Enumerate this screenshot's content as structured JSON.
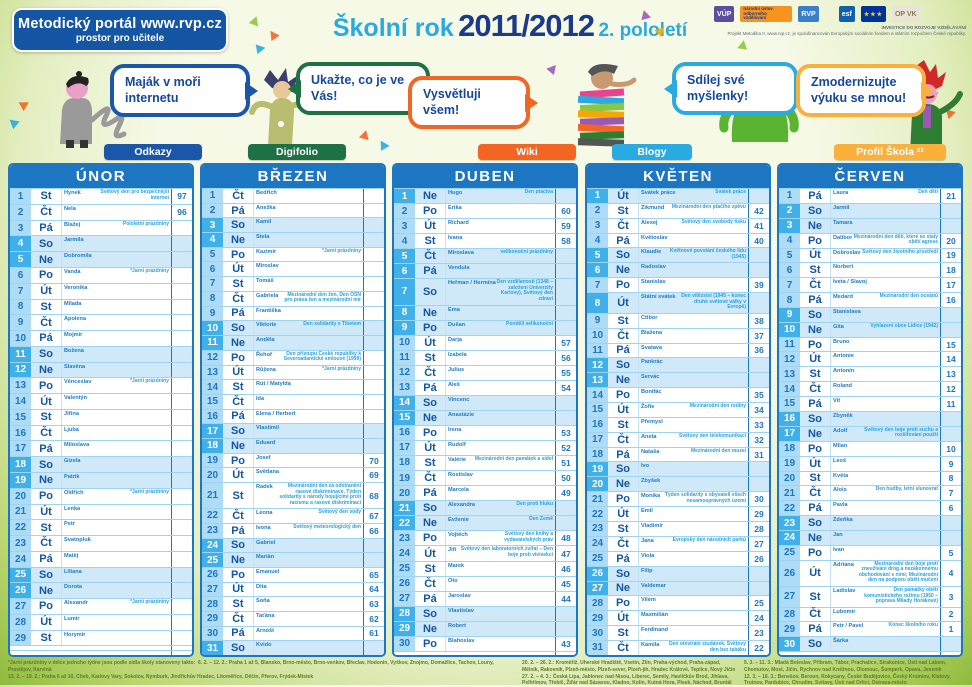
{
  "header": {
    "badge_line1": "Metodický portál www.rvp.cz",
    "badge_line2": "prostor pro učitele",
    "title_prefix": "Školní rok",
    "title_year": "2011/2012",
    "title_suffix": "2. pololetí",
    "logos": {
      "vup": "VÚP",
      "nuv": "národní ústav odborného vzdělávání",
      "rvp": "RVP",
      "esf": "esf",
      "eu": "★★★",
      "opvk": "OP VK"
    },
    "logo_caption1": "INVESTICE DO ROZVOJE VZDĚLÁVÁNÍ",
    "logo_caption2": "Projekt Metodika II, www.rvp.cz, je spolufinancován Evropským sociálním fondem a státním rozpočtem České republiky."
  },
  "mascots": [
    {
      "bubble": "Maják v moři internetu",
      "tab": "Odkazy",
      "color": "#1b57a8"
    },
    {
      "bubble": "Ukažte, co je ve Vás!",
      "tab": "Digifolio",
      "color": "#1e7145"
    },
    {
      "bubble": "Vysvětluji všem!",
      "tab": "Wiki",
      "color": "#f26522"
    },
    {
      "bubble": "Sdílej své myšlenky!",
      "tab": "Blogy",
      "color": "#29abe2"
    },
    {
      "bubble": "Zmodernizujte výuku se mnou!",
      "tab": "Profil Škola ²¹",
      "color": "#fbb03b"
    }
  ],
  "months": [
    {
      "name": "ÚNOR",
      "days": [
        {
          "d": 1,
          "dw": "St",
          "n": "Hynek",
          "note": "Světový den pro bezpečnější internet",
          "c": "97"
        },
        {
          "d": 2,
          "dw": "Čt",
          "n": "Nela",
          "c": "96"
        },
        {
          "d": 3,
          "dw": "Pá",
          "n": "Blažej",
          "note": "Pololetní prázdniny"
        },
        {
          "d": 4,
          "dw": "So",
          "n": "Jarmila"
        },
        {
          "d": 5,
          "dw": "Ne",
          "n": "Dobromila"
        },
        {
          "d": 6,
          "dw": "Po",
          "n": "Vanda",
          "note": "*Jarní prázdniny"
        },
        {
          "d": 7,
          "dw": "Út",
          "n": "Veronika"
        },
        {
          "d": 8,
          "dw": "St",
          "n": "Milada"
        },
        {
          "d": 9,
          "dw": "Čt",
          "n": "Apolena"
        },
        {
          "d": 10,
          "dw": "Pá",
          "n": "Mojmír"
        },
        {
          "d": 11,
          "dw": "So",
          "n": "Božena"
        },
        {
          "d": 12,
          "dw": "Ne",
          "n": "Slavěna"
        },
        {
          "d": 13,
          "dw": "Po",
          "n": "Věnceslav",
          "note": "*Jarní prázdniny"
        },
        {
          "d": 14,
          "dw": "Út",
          "n": "Valentýn"
        },
        {
          "d": 15,
          "dw": "St",
          "n": "Jiřina"
        },
        {
          "d": 16,
          "dw": "Čt",
          "n": "Ljuba"
        },
        {
          "d": 17,
          "dw": "Pá",
          "n": "Miloslava"
        },
        {
          "d": 18,
          "dw": "So",
          "n": "Gizela"
        },
        {
          "d": 19,
          "dw": "Ne",
          "n": "Patrik"
        },
        {
          "d": 20,
          "dw": "Po",
          "n": "Oldřich",
          "note": "*Jarní prázdniny"
        },
        {
          "d": 21,
          "dw": "Út",
          "n": "Lenka"
        },
        {
          "d": 22,
          "dw": "St",
          "n": "Petr"
        },
        {
          "d": 23,
          "dw": "Čt",
          "n": "Svatopluk"
        },
        {
          "d": 24,
          "dw": "Pá",
          "n": "Matěj"
        },
        {
          "d": 25,
          "dw": "So",
          "n": "Liliana"
        },
        {
          "d": 26,
          "dw": "Ne",
          "n": "Dorota"
        },
        {
          "d": 27,
          "dw": "Po",
          "n": "Alexandr",
          "note": "*Jarní prázdniny"
        },
        {
          "d": 28,
          "dw": "Út",
          "n": "Lumír"
        },
        {
          "d": 29,
          "dw": "St",
          "n": "Horymír"
        }
      ]
    },
    {
      "name": "BŘEZEN",
      "days": [
        {
          "d": 1,
          "dw": "Čt",
          "n": "Bedřich"
        },
        {
          "d": 2,
          "dw": "Pá",
          "n": "Anežka"
        },
        {
          "d": 3,
          "dw": "So",
          "n": "Kamil"
        },
        {
          "d": 4,
          "dw": "Ne",
          "n": "Stela"
        },
        {
          "d": 5,
          "dw": "Po",
          "n": "Kazimír",
          "note": "*Jarní prázdniny"
        },
        {
          "d": 6,
          "dw": "Út",
          "n": "Miroslav"
        },
        {
          "d": 7,
          "dw": "St",
          "n": "Tomáš"
        },
        {
          "d": 8,
          "dw": "Čt",
          "n": "Gabriela",
          "note": "Mezinárodní den žen, Den OSN pro práva žen a mezinárodní mír"
        },
        {
          "d": 9,
          "dw": "Pá",
          "n": "Františka"
        },
        {
          "d": 10,
          "dw": "So",
          "n": "Viktorie",
          "note": "Den solidarity s Tibetem"
        },
        {
          "d": 11,
          "dw": "Ne",
          "n": "Anděla"
        },
        {
          "d": 12,
          "dw": "Po",
          "n": "Řehoř",
          "note": "Den přístupu České republiky k Severoatlantické smlouvě (1999)"
        },
        {
          "d": 13,
          "dw": "Út",
          "n": "Růžena",
          "note": "*Jarní prázdniny"
        },
        {
          "d": 14,
          "dw": "St",
          "n": "Rút / Matylda"
        },
        {
          "d": 15,
          "dw": "Čt",
          "n": "Ida"
        },
        {
          "d": 16,
          "dw": "Pá",
          "n": "Elena / Herbert"
        },
        {
          "d": 17,
          "dw": "So",
          "n": "Vlastimil"
        },
        {
          "d": 18,
          "dw": "Ne",
          "n": "Eduard"
        },
        {
          "d": 19,
          "dw": "Po",
          "n": "Josef",
          "c": "70"
        },
        {
          "d": 20,
          "dw": "Út",
          "n": "Světlana",
          "c": "69"
        },
        {
          "d": 21,
          "dw": "St",
          "n": "Radek",
          "note": "Mezinárodní den za odstranění rasové diskriminace, Týden solidarity s národy bojujícími proti rasismu a rasové diskriminaci",
          "c": "68"
        },
        {
          "d": 22,
          "dw": "Čt",
          "n": "Leona",
          "note": "Světový den vody",
          "c": "67"
        },
        {
          "d": 23,
          "dw": "Pá",
          "n": "Ivona",
          "note": "Světový meteorologický den",
          "c": "66"
        },
        {
          "d": 24,
          "dw": "So",
          "n": "Gabriel"
        },
        {
          "d": 25,
          "dw": "Ne",
          "n": "Marián"
        },
        {
          "d": 26,
          "dw": "Po",
          "n": "Emanuel",
          "c": "65"
        },
        {
          "d": 27,
          "dw": "Út",
          "n": "Dita",
          "c": "64"
        },
        {
          "d": 28,
          "dw": "St",
          "n": "Soňa",
          "c": "63"
        },
        {
          "d": 29,
          "dw": "Čt",
          "n": "Taťána",
          "c": "62"
        },
        {
          "d": 30,
          "dw": "Pá",
          "n": "Arnošt",
          "c": "61"
        },
        {
          "d": 31,
          "dw": "So",
          "n": "Kvido"
        }
      ]
    },
    {
      "name": "DUBEN",
      "days": [
        {
          "d": 1,
          "dw": "Ne",
          "n": "Hugo",
          "note": "Den ptactva"
        },
        {
          "d": 2,
          "dw": "Po",
          "n": "Erika",
          "c": "60"
        },
        {
          "d": 3,
          "dw": "Út",
          "n": "Richard",
          "c": "59"
        },
        {
          "d": 4,
          "dw": "St",
          "n": "Ivana",
          "c": "58"
        },
        {
          "d": 5,
          "dw": "Čt",
          "n": "Miroslava",
          "note": "velikonoční prázdniny",
          "h": true
        },
        {
          "d": 6,
          "dw": "Pá",
          "n": "Vendula",
          "h": true
        },
        {
          "d": 7,
          "dw": "So",
          "n": "Heřman / Hermína",
          "note": "Den vzdělanosti (1348 – založení Univerzity Karlovy), Světový den zdraví"
        },
        {
          "d": 8,
          "dw": "Ne",
          "n": "Ema"
        },
        {
          "d": 9,
          "dw": "Po",
          "n": "Dušan",
          "note": "Pondělí velikonoční",
          "h": true
        },
        {
          "d": 10,
          "dw": "Út",
          "n": "Darja",
          "c": "57"
        },
        {
          "d": 11,
          "dw": "St",
          "n": "Izabela",
          "c": "56"
        },
        {
          "d": 12,
          "dw": "Čt",
          "n": "Julius",
          "c": "55"
        },
        {
          "d": 13,
          "dw": "Pá",
          "n": "Aleš",
          "c": "54"
        },
        {
          "d": 14,
          "dw": "So",
          "n": "Vincenc"
        },
        {
          "d": 15,
          "dw": "Ne",
          "n": "Anastázie"
        },
        {
          "d": 16,
          "dw": "Po",
          "n": "Irena",
          "c": "53"
        },
        {
          "d": 17,
          "dw": "Út",
          "n": "Rudolf",
          "c": "52"
        },
        {
          "d": 18,
          "dw": "St",
          "n": "Valérie",
          "note": "Mezinárodní den památek a sídel",
          "c": "51"
        },
        {
          "d": 19,
          "dw": "Čt",
          "n": "Rostislav",
          "c": "50"
        },
        {
          "d": 20,
          "dw": "Pá",
          "n": "Marcela",
          "c": "49"
        },
        {
          "d": 21,
          "dw": "So",
          "n": "Alexandra",
          "note": "Den proti hluku"
        },
        {
          "d": 22,
          "dw": "Ne",
          "n": "Evženie",
          "note": "Den Země"
        },
        {
          "d": 23,
          "dw": "Po",
          "n": "Vojtěch",
          "note": "Světový den knihy a vydavatelských práv",
          "c": "48"
        },
        {
          "d": 24,
          "dw": "Út",
          "n": "Jiří",
          "note": "Světový den laboratorních zvířat – Den boje proti vivisekci",
          "c": "47"
        },
        {
          "d": 25,
          "dw": "St",
          "n": "Marek",
          "c": "46"
        },
        {
          "d": 26,
          "dw": "Čt",
          "n": "Oto",
          "c": "45"
        },
        {
          "d": 27,
          "dw": "Pá",
          "n": "Jaroslav",
          "c": "44"
        },
        {
          "d": 28,
          "dw": "So",
          "n": "Vlastislav"
        },
        {
          "d": 29,
          "dw": "Ne",
          "n": "Robert"
        },
        {
          "d": 30,
          "dw": "Po",
          "n": "Blahoslav",
          "c": "43"
        }
      ]
    },
    {
      "name": "KVĚTEN",
      "days": [
        {
          "d": 1,
          "dw": "Út",
          "n": "Svátek práce",
          "note": "Svátek práce",
          "h": true
        },
        {
          "d": 2,
          "dw": "St",
          "n": "Zikmund",
          "note": "Mezinárodní den ptačího zpěvu",
          "c": "42"
        },
        {
          "d": 3,
          "dw": "Čt",
          "n": "Alexej",
          "note": "Světový den svobody tisku",
          "c": "41"
        },
        {
          "d": 4,
          "dw": "Pá",
          "n": "Květoslav",
          "c": "40"
        },
        {
          "d": 5,
          "dw": "So",
          "n": "Klaudie",
          "note": "Květnové povstání českého lidu (1945)"
        },
        {
          "d": 6,
          "dw": "Ne",
          "n": "Radoslav"
        },
        {
          "d": 7,
          "dw": "Po",
          "n": "Stanislav",
          "c": "39"
        },
        {
          "d": 8,
          "dw": "Út",
          "n": "Státní svátek",
          "note": "Den vítězství (1945 – konec druhé světové války v Evropě)",
          "h": true
        },
        {
          "d": 9,
          "dw": "St",
          "n": "Ctibor",
          "c": "38"
        },
        {
          "d": 10,
          "dw": "Čt",
          "n": "Blažena",
          "c": "37"
        },
        {
          "d": 11,
          "dw": "Pá",
          "n": "Svatava",
          "c": "36"
        },
        {
          "d": 12,
          "dw": "So",
          "n": "Pankrác"
        },
        {
          "d": 13,
          "dw": "Ne",
          "n": "Servác"
        },
        {
          "d": 14,
          "dw": "Po",
          "n": "Bonifác",
          "c": "35"
        },
        {
          "d": 15,
          "dw": "Út",
          "n": "Žofie",
          "note": "Mezinárodní den rodiny",
          "c": "34"
        },
        {
          "d": 16,
          "dw": "St",
          "n": "Přemysl",
          "c": "33"
        },
        {
          "d": 17,
          "dw": "Čt",
          "n": "Aneta",
          "note": "Světový den telekomunikací",
          "c": "32"
        },
        {
          "d": 18,
          "dw": "Pá",
          "n": "Nataša",
          "note": "Mezinárodní den muzeí",
          "c": "31"
        },
        {
          "d": 19,
          "dw": "So",
          "n": "Ivo"
        },
        {
          "d": 20,
          "dw": "Ne",
          "n": "Zbyšek"
        },
        {
          "d": 21,
          "dw": "Po",
          "n": "Monika",
          "note": "Týden solidarity s obyvateli všech nesamosprávných území",
          "c": "30"
        },
        {
          "d": 22,
          "dw": "Út",
          "n": "Emil",
          "c": "29"
        },
        {
          "d": 23,
          "dw": "St",
          "n": "Vladimír",
          "c": "28"
        },
        {
          "d": 24,
          "dw": "Čt",
          "n": "Jana",
          "note": "Evropský den národních parků",
          "c": "27"
        },
        {
          "d": 25,
          "dw": "Pá",
          "n": "Viola",
          "c": "26"
        },
        {
          "d": 26,
          "dw": "So",
          "n": "Filip"
        },
        {
          "d": 27,
          "dw": "Ne",
          "n": "Valdemar"
        },
        {
          "d": 28,
          "dw": "Po",
          "n": "Vilém",
          "c": "25"
        },
        {
          "d": 29,
          "dw": "Út",
          "n": "Maxmilián",
          "c": "24"
        },
        {
          "d": 30,
          "dw": "St",
          "n": "Ferdinand",
          "c": "23"
        },
        {
          "d": 31,
          "dw": "Čt",
          "n": "Kamila",
          "note": "Den otevírání studánek, Světový den bez tabáku",
          "c": "22"
        }
      ]
    },
    {
      "name": "ČERVEN",
      "days": [
        {
          "d": 1,
          "dw": "Pá",
          "n": "Laura",
          "note": "Den dětí",
          "c": "21"
        },
        {
          "d": 2,
          "dw": "So",
          "n": "Jarmil"
        },
        {
          "d": 3,
          "dw": "Ne",
          "n": "Tamara"
        },
        {
          "d": 4,
          "dw": "Po",
          "n": "Dalibor",
          "note": "Mezinárodní den dětí, které se staly obětí agrese",
          "c": "20"
        },
        {
          "d": 5,
          "dw": "Út",
          "n": "Dobroslav",
          "note": "Světový den životního prostředí",
          "c": "19"
        },
        {
          "d": 6,
          "dw": "St",
          "n": "Norbert",
          "c": "18"
        },
        {
          "d": 7,
          "dw": "Čt",
          "n": "Iveta / Slavoj",
          "c": "17"
        },
        {
          "d": 8,
          "dw": "Pá",
          "n": "Medard",
          "note": "Mezinárodní den oceánů",
          "c": "16"
        },
        {
          "d": 9,
          "dw": "So",
          "n": "Stanislava"
        },
        {
          "d": 10,
          "dw": "Ne",
          "n": "Gita",
          "note": "Vyhlazení obce Lidice (1942)"
        },
        {
          "d": 11,
          "dw": "Po",
          "n": "Bruno",
          "c": "15"
        },
        {
          "d": 12,
          "dw": "Út",
          "n": "Antonie",
          "c": "14"
        },
        {
          "d": 13,
          "dw": "St",
          "n": "Antonín",
          "c": "13"
        },
        {
          "d": 14,
          "dw": "Čt",
          "n": "Roland",
          "c": "12"
        },
        {
          "d": 15,
          "dw": "Pá",
          "n": "Vít",
          "c": "11"
        },
        {
          "d": 16,
          "dw": "So",
          "n": "Zbyněk"
        },
        {
          "d": 17,
          "dw": "Ne",
          "n": "Adolf",
          "note": "Světový den boje proti suchu a rozšiřování pouští"
        },
        {
          "d": 18,
          "dw": "Po",
          "n": "Milan",
          "c": "10"
        },
        {
          "d": 19,
          "dw": "Út",
          "n": "Leoš",
          "c": "9"
        },
        {
          "d": 20,
          "dw": "St",
          "n": "Květa",
          "c": "8"
        },
        {
          "d": 21,
          "dw": "Čt",
          "n": "Alois",
          "note": "Den hudby, letní slunovrat",
          "c": "7"
        },
        {
          "d": 22,
          "dw": "Pá",
          "n": "Pavla",
          "c": "6"
        },
        {
          "d": 23,
          "dw": "So",
          "n": "Zdeňka"
        },
        {
          "d": 24,
          "dw": "Ne",
          "n": "Jan"
        },
        {
          "d": 25,
          "dw": "Po",
          "n": "Ivan",
          "c": "5"
        },
        {
          "d": 26,
          "dw": "Út",
          "n": "Adriana",
          "note": "Mezinárodní den boje proti zneužívání drog a nezákonnému obchodování s nimi; Mezinárodní den na podporu obětí mučení",
          "c": "4"
        },
        {
          "d": 27,
          "dw": "St",
          "n": "Ladislav",
          "note": "Den památky obětí komunistického režimu (1950 – poprava Milady Horákové)",
          "c": "3"
        },
        {
          "d": 28,
          "dw": "Čt",
          "n": "Lubomír",
          "c": "2"
        },
        {
          "d": 29,
          "dw": "Pá",
          "n": "Petr / Pavel",
          "note": "Konec školního roku",
          "c": "1"
        },
        {
          "d": 30,
          "dw": "So",
          "n": "Šárka"
        }
      ]
    }
  ],
  "footnotes": {
    "intro": "*Jarní prázdniny v délce jednoho týdne jsou podle sídla školy stanoveny takto:",
    "wave1": "6. 2. – 12. 2.: Praha 1 až 5, Blansko, Brno-město, Brno-venkov, Břeclav, Hodonín, Vyškov, Znojmo, Domažlice, Tachov, Louny, Prostějov, Karviná",
    "wave2": "13. 2. – 19. 2.: Praha 6 až 10, Cheb, Karlovy Vary, Sokolov, Nymburk, Jindřichův Hradec, Litoměřice, Děčín, Přerov, Frýdek-Místek",
    "wave3": "20. 2. – 26. 2.: Kroměříž, Uherské Hradiště, Vsetín, Zlín, Praha-východ, Praha-západ, Mělník, Rakovník, Plzeň-město, Plzeň-sever, Plzeň-jih, Hradec Králové, Teplice, Nový Jičín",
    "wave4": "27. 2. – 4. 3.: Česká Lípa, Jablonec nad Nisou, Liberec, Semily, Havlíčkův Brod, Jihlava, Pelhřimov, Třebíč, Žďár nad Sázavou, Kladno, Kolín, Kutná Hora, Písek, Náchod, Bruntál",
    "wave5": "5. 3. – 11. 3.: Mladá Boleslav, Příbram, Tábor, Prachatice, Strakonice, Ústí nad Labem, Chomutov, Most, Jičín, Rychnov nad Kněžnou, Olomouc, Šumperk, Opava, Jeseník",
    "wave6": "12. 3. – 18. 3.: Benešov, Beroun, Rokycany, České Budějovice, Český Krumlov, Klatovy, Trutnov, Pardubice, Chrudim, Svitavy, Ústí nad Orlicí, Ostrava-město"
  }
}
